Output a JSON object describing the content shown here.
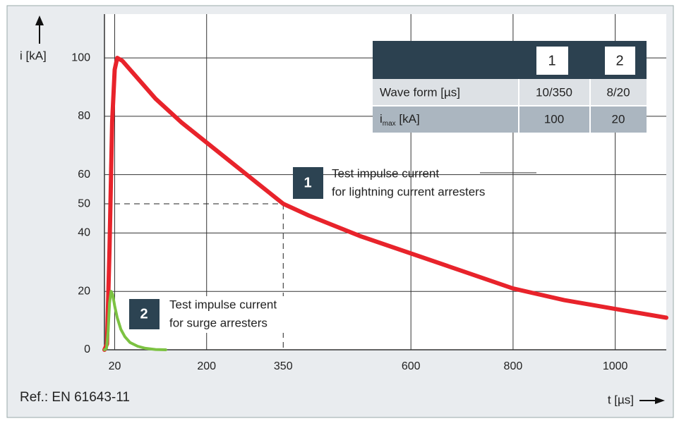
{
  "chart_data": {
    "type": "line",
    "y_label": "i [kA]",
    "x_label": "t [µs]",
    "reference_note": "Ref.: EN 61643-11",
    "xlim": [
      0,
      1100
    ],
    "ylim": [
      0,
      115
    ],
    "xticks": [
      20,
      200,
      350,
      600,
      800,
      1000
    ],
    "yticks": [
      0,
      20,
      40,
      50,
      60,
      80,
      100
    ],
    "grid": true,
    "reference": {
      "x": 350,
      "y": 50
    },
    "series": [
      {
        "name": "1",
        "color": "#e8232b",
        "x": [
          0,
          5,
          10,
          15,
          20,
          25,
          35,
          60,
          100,
          150,
          200,
          250,
          300,
          350,
          400,
          500,
          600,
          700,
          800,
          900,
          1000,
          1100
        ],
        "values": [
          0,
          2,
          35,
          78,
          96,
          100,
          99,
          94,
          86,
          78,
          71,
          64,
          57,
          50,
          46,
          39,
          33,
          27,
          21,
          17,
          14,
          11
        ]
      },
      {
        "name": "2",
        "color": "#7cc242",
        "x": [
          0,
          4,
          7,
          10,
          13,
          16,
          20,
          25,
          32,
          40,
          50,
          65,
          80,
          100,
          120
        ],
        "values": [
          0,
          0.5,
          6,
          16,
          20,
          19,
          15,
          11,
          7,
          4.5,
          2.5,
          1.2,
          0.5,
          0.1,
          0
        ]
      }
    ],
    "annotations": [
      {
        "series": "1",
        "lines": [
          "Test impulse current",
          "for lightning current arresters"
        ]
      },
      {
        "series": "2",
        "lines": [
          "Test impulse current",
          "for surge arresters"
        ]
      }
    ],
    "table": {
      "header": [
        "1",
        "2"
      ],
      "rows": [
        {
          "label": "Wave form  [µs]",
          "cells": [
            "10/350",
            "8/20"
          ]
        },
        {
          "label_symbol": "i",
          "label_sub": "max",
          "label_unit": " [kA]",
          "cells": [
            "100",
            "20"
          ]
        }
      ]
    }
  }
}
